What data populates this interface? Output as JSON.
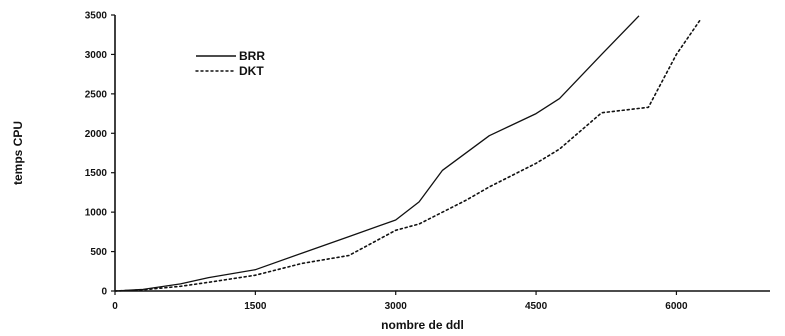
{
  "chart_data": {
    "type": "line",
    "xlabel": "nombre de ddl",
    "ylabel": "temps CPU",
    "xlim": [
      0,
      7000
    ],
    "ylim": [
      0,
      3500
    ],
    "xticks": [
      0,
      1500,
      3000,
      4500,
      6000
    ],
    "yticks": [
      0,
      500,
      1000,
      1500,
      2000,
      2500,
      3000,
      3500
    ],
    "grid": false,
    "legend": "upper-left",
    "series": [
      {
        "name": "BRR",
        "style": "solid",
        "color": "#111111",
        "x": [
          0,
          300,
          700,
          1000,
          1500,
          2000,
          2500,
          3000,
          3250,
          3500,
          4000,
          4500,
          4750,
          5200,
          5600
        ],
        "y": [
          0,
          20,
          90,
          170,
          270,
          480,
          690,
          900,
          1130,
          1530,
          1970,
          2250,
          2440,
          3000,
          3490
        ]
      },
      {
        "name": "DKT",
        "style": "dotted",
        "color": "#111111",
        "x": [
          0,
          300,
          700,
          1000,
          1500,
          2000,
          2500,
          3000,
          3250,
          3750,
          4000,
          4500,
          4750,
          5200,
          5700,
          6000,
          6250
        ],
        "y": [
          0,
          15,
          60,
          110,
          200,
          350,
          450,
          770,
          850,
          1150,
          1320,
          1620,
          1800,
          2260,
          2330,
          3000,
          3430
        ]
      }
    ]
  }
}
